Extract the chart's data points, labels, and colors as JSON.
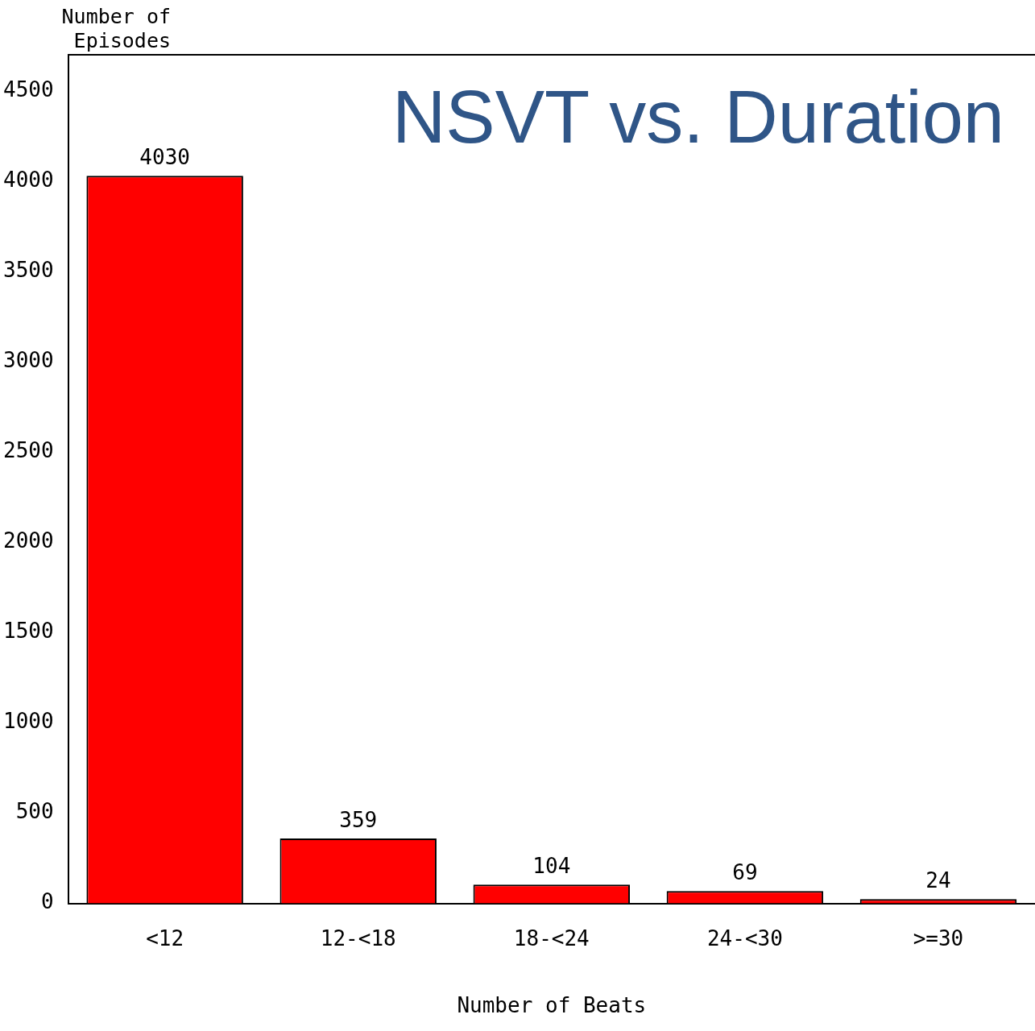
{
  "chart_data": {
    "type": "bar",
    "title": "NSVT vs. Duration",
    "xlabel": "Number of Beats",
    "ylabel": "Number of Episodes",
    "categories": [
      "<12",
      "12-<18",
      "18-<24",
      "24-<30",
      ">=30"
    ],
    "values": [
      4030,
      359,
      104,
      69,
      24
    ],
    "color": "#ff0000",
    "ylim": [
      0,
      4700
    ],
    "yticks": [
      0,
      500,
      1000,
      1500,
      2000,
      2500,
      3000,
      3500,
      4000,
      4500
    ],
    "grid": false,
    "legend": false,
    "data_labels": true
  }
}
